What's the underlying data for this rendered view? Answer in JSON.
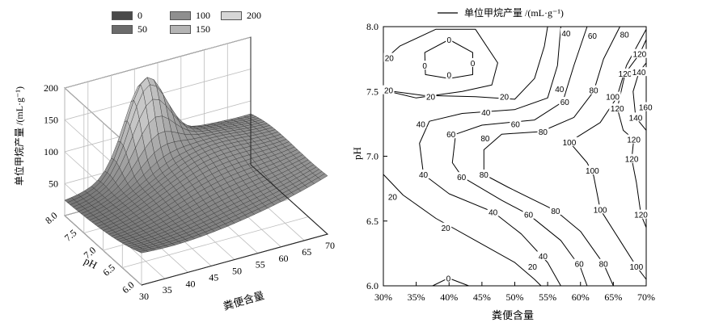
{
  "chart_data": [
    {
      "type": "surface3d",
      "title": "",
      "zlabel": "单位甲烷产量 /(mL·g⁻¹)",
      "xlabel": "粪便含量",
      "ylabel": "pH",
      "x_ticks": [
        "30",
        "35",
        "40",
        "45",
        "50",
        "55",
        "60",
        "65",
        "70"
      ],
      "y_ticks": [
        "6.0",
        "6.5",
        "7.0",
        "7.5",
        "8.0"
      ],
      "z_ticks": [
        "50",
        "100",
        "150",
        "200"
      ],
      "zlim": [
        0,
        200
      ],
      "legend": {
        "position": "top",
        "entries": [
          {
            "label": "0",
            "color": "#4a4a4a"
          },
          {
            "label": "50",
            "color": "#6b6b6b"
          },
          {
            "label": "100",
            "color": "#8f8f8f"
          },
          {
            "label": "150",
            "color": "#b4b4b4"
          },
          {
            "label": "200",
            "color": "#d6d6d6"
          }
        ]
      },
      "grid": true
    },
    {
      "type": "contour",
      "title": "单位甲烷产量 /(mL·g⁻¹)",
      "xlabel": "粪便含量",
      "ylabel": "pH",
      "xlim": [
        30,
        70
      ],
      "ylim": [
        6.0,
        8.0
      ],
      "x_ticks": [
        "30%",
        "35%",
        "40%",
        "45%",
        "50%",
        "55%",
        "60%",
        "65%",
        "70%"
      ],
      "y_ticks": [
        "6.0",
        "6.5",
        "7.0",
        "7.5",
        "8.0"
      ],
      "contour_labels": [
        {
          "text": "0",
          "x": 40.0,
          "y": 7.9
        },
        {
          "text": "0",
          "x": 40.0,
          "y": 7.63
        },
        {
          "text": "0",
          "x": 36.3,
          "y": 7.7
        },
        {
          "text": "0",
          "x": 43.6,
          "y": 7.72
        },
        {
          "text": "0",
          "x": 39.9,
          "y": 6.06
        },
        {
          "text": "20",
          "x": 30.9,
          "y": 7.76
        },
        {
          "text": "20",
          "x": 30.8,
          "y": 7.51
        },
        {
          "text": "20",
          "x": 37.2,
          "y": 7.46
        },
        {
          "text": "20",
          "x": 48.4,
          "y": 7.46
        },
        {
          "text": "20",
          "x": 31.4,
          "y": 6.69
        },
        {
          "text": "20",
          "x": 39.5,
          "y": 6.45
        },
        {
          "text": "20",
          "x": 52.7,
          "y": 6.15
        },
        {
          "text": "40",
          "x": 57.8,
          "y": 7.95
        },
        {
          "text": "40",
          "x": 56.8,
          "y": 7.52
        },
        {
          "text": "40",
          "x": 45.6,
          "y": 7.34
        },
        {
          "text": "40",
          "x": 35.7,
          "y": 7.25
        },
        {
          "text": "40",
          "x": 36.1,
          "y": 6.86
        },
        {
          "text": "40",
          "x": 46.7,
          "y": 6.57
        },
        {
          "text": "40",
          "x": 54.3,
          "y": 6.23
        },
        {
          "text": "60",
          "x": 61.8,
          "y": 7.93
        },
        {
          "text": "60",
          "x": 57.6,
          "y": 7.42
        },
        {
          "text": "60",
          "x": 50.1,
          "y": 7.25
        },
        {
          "text": "60",
          "x": 40.3,
          "y": 7.17
        },
        {
          "text": "60",
          "x": 41.9,
          "y": 6.84
        },
        {
          "text": "60",
          "x": 52.1,
          "y": 6.55
        },
        {
          "text": "60",
          "x": 59.8,
          "y": 6.17
        },
        {
          "text": "80",
          "x": 66.7,
          "y": 7.94
        },
        {
          "text": "80",
          "x": 62.0,
          "y": 7.51
        },
        {
          "text": "80",
          "x": 54.3,
          "y": 7.19
        },
        {
          "text": "80",
          "x": 45.5,
          "y": 7.14
        },
        {
          "text": "80",
          "x": 45.3,
          "y": 6.86
        },
        {
          "text": "80",
          "x": 56.2,
          "y": 6.58
        },
        {
          "text": "80",
          "x": 63.5,
          "y": 6.17
        },
        {
          "text": "100",
          "x": 58.3,
          "y": 7.11
        },
        {
          "text": "100",
          "x": 61.8,
          "y": 6.89
        },
        {
          "text": "100",
          "x": 63.0,
          "y": 6.59
        },
        {
          "text": "100",
          "x": 68.5,
          "y": 6.15
        },
        {
          "text": "100",
          "x": 64.9,
          "y": 7.46
        },
        {
          "text": "120",
          "x": 69.0,
          "y": 7.79
        },
        {
          "text": "120",
          "x": 66.8,
          "y": 7.64
        },
        {
          "text": "120",
          "x": 65.6,
          "y": 7.37
        },
        {
          "text": "120",
          "x": 68.1,
          "y": 7.13
        },
        {
          "text": "120",
          "x": 67.8,
          "y": 6.98
        },
        {
          "text": "120",
          "x": 69.2,
          "y": 6.55
        },
        {
          "text": "140",
          "x": 68.9,
          "y": 7.65
        },
        {
          "text": "140",
          "x": 68.4,
          "y": 7.3
        },
        {
          "text": "160",
          "x": 69.9,
          "y": 7.38
        }
      ],
      "legend": {
        "position": "top",
        "entries": [
          "单位甲烷产量 /(mL·g⁻¹)"
        ]
      },
      "grid": false
    }
  ]
}
